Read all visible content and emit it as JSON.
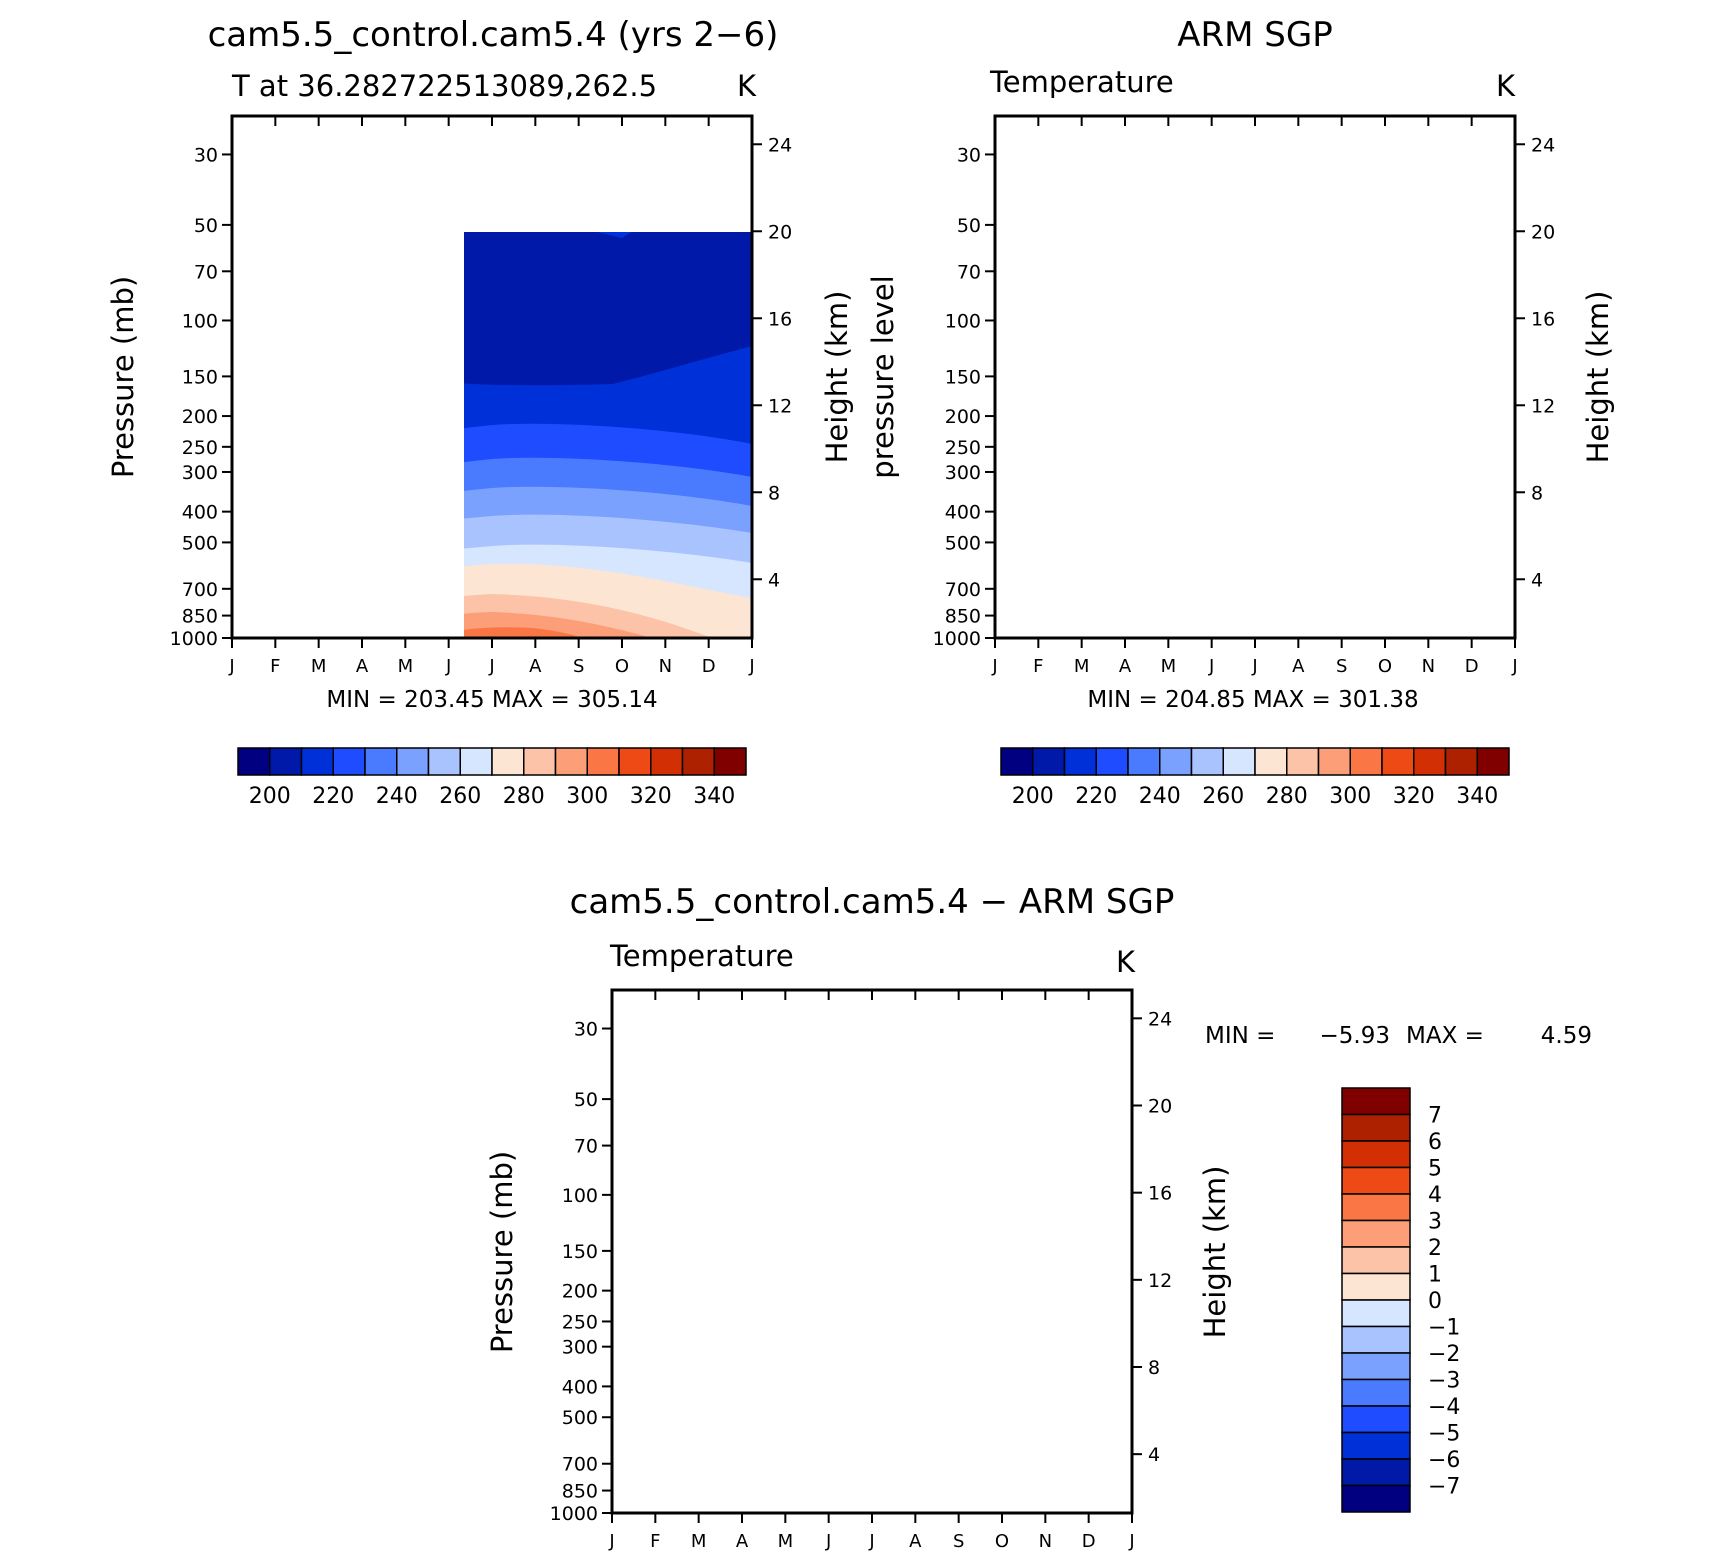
{
  "chart_data": [
    {
      "type": "heatmap",
      "title": "cam5.5_control.cam5.4 (yrs 2−6)",
      "subtitle_left": "T at 36.282722513089,262.5",
      "subtitle_right": "K",
      "ylabel_left": "Pressure (mb)",
      "ylabel_right": "Height (km)",
      "x_ticks": [
        "J",
        "F",
        "M",
        "A",
        "M",
        "J",
        "J",
        "A",
        "S",
        "O",
        "N",
        "D",
        "J"
      ],
      "y_ticks": [
        "30",
        "50",
        "70",
        "100",
        "150",
        "200",
        "250",
        "300",
        "400",
        "500",
        "700",
        "850",
        "1000"
      ],
      "height_ticks": [
        "24",
        "20",
        "16",
        "12",
        "8",
        "4"
      ],
      "stats": "MIN = 203.45 MAX = 305.14",
      "min": 203.45,
      "max": 305.14,
      "colorbar": {
        "labels": [
          "200",
          "220",
          "240",
          "260",
          "280",
          "300",
          "320",
          "340"
        ],
        "colors": [
          "#000080",
          "#0019a8",
          "#0030d8",
          "#1f4cff",
          "#4a7bff",
          "#7ba1ff",
          "#a9c3ff",
          "#d6e6ff",
          "#fde5d4",
          "#fcc3a8",
          "#fc9e78",
          "#fb7645",
          "#ee4a16",
          "#d22f05",
          "#ad2000",
          "#800000"
        ]
      }
    },
    {
      "type": "heatmap",
      "title": "ARM SGP",
      "subtitle_left": "Temperature",
      "subtitle_right": "K",
      "ylabel_left": "pressure level",
      "ylabel_right": "Height (km)",
      "x_ticks": [
        "J",
        "F",
        "M",
        "A",
        "M",
        "J",
        "J",
        "A",
        "S",
        "O",
        "N",
        "D",
        "J"
      ],
      "y_ticks": [
        "30",
        "50",
        "70",
        "100",
        "150",
        "200",
        "250",
        "300",
        "400",
        "500",
        "700",
        "850",
        "1000"
      ],
      "height_ticks": [
        "24",
        "20",
        "16",
        "12",
        "8",
        "4"
      ],
      "stats": "MIN = 204.85 MAX = 301.38",
      "min": 204.85,
      "max": 301.38,
      "colorbar": {
        "labels": [
          "200",
          "220",
          "240",
          "260",
          "280",
          "300",
          "320",
          "340"
        ],
        "colors": [
          "#000080",
          "#0019a8",
          "#0030d8",
          "#1f4cff",
          "#4a7bff",
          "#7ba1ff",
          "#a9c3ff",
          "#d6e6ff",
          "#fde5d4",
          "#fcc3a8",
          "#fc9e78",
          "#fb7645",
          "#ee4a16",
          "#d22f05",
          "#ad2000",
          "#800000"
        ]
      }
    },
    {
      "type": "heatmap",
      "title": "cam5.5_control.cam5.4 − ARM SGP",
      "subtitle_left": "Temperature",
      "subtitle_right": "K",
      "ylabel_left": "Pressure (mb)",
      "ylabel_right": "Height (km)",
      "x_ticks": [
        "J",
        "F",
        "M",
        "A",
        "M",
        "J",
        "J",
        "A",
        "S",
        "O",
        "N",
        "D",
        "J"
      ],
      "y_ticks": [
        "30",
        "50",
        "70",
        "100",
        "150",
        "200",
        "250",
        "300",
        "400",
        "500",
        "700",
        "850",
        "1000"
      ],
      "height_ticks": [
        "24",
        "20",
        "16",
        "12",
        "8",
        "4"
      ],
      "stats_min_label": "MIN =",
      "stats_min": "−5.93",
      "stats_max_label": "MAX =",
      "stats_max": "4.59",
      "min": -5.93,
      "max": 4.59,
      "colorbar": {
        "labels": [
          "7",
          "6",
          "5",
          "4",
          "3",
          "2",
          "1",
          "0",
          "−1",
          "−2",
          "−3",
          "−4",
          "−5",
          "−6",
          "−7"
        ],
        "colors": [
          "#800000",
          "#ad2000",
          "#d22f05",
          "#ee4a16",
          "#fb7645",
          "#fc9e78",
          "#fcc3a8",
          "#fde5d4",
          "#d6e6ff",
          "#a9c3ff",
          "#7ba1ff",
          "#4a7bff",
          "#1f4cff",
          "#0030d8",
          "#0019a8",
          "#000080"
        ]
      }
    }
  ]
}
